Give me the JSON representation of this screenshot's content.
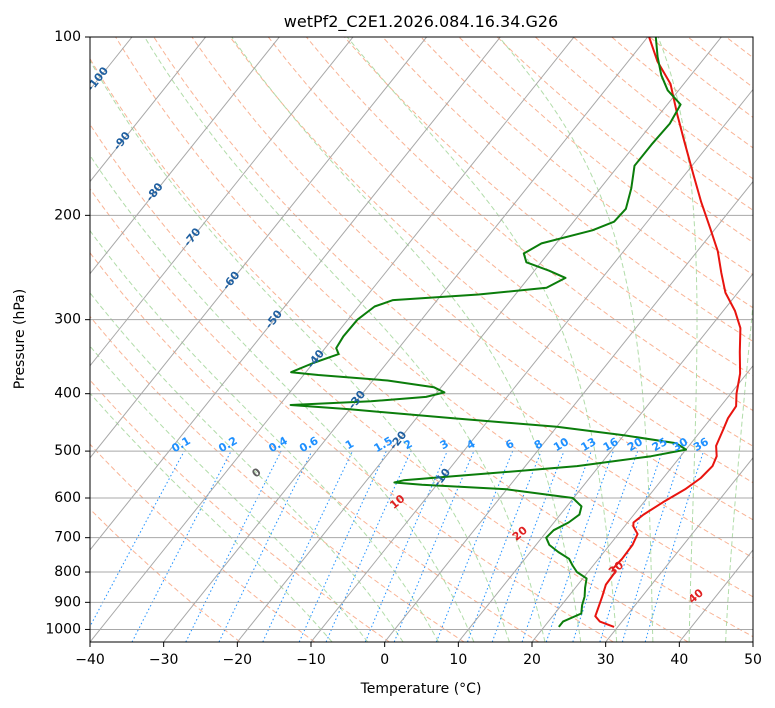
{
  "chart_data": {
    "type": "line",
    "title": "wetPf2_C2E1.2026.084.16.34.G26",
    "xlabel": "Temperature (°C)",
    "ylabel": "Pressure (hPa)",
    "xlim": [
      -40,
      50
    ],
    "ylim": [
      1050,
      100
    ],
    "y_scale": "log",
    "x_ticks": [
      -40,
      -30,
      -20,
      -10,
      0,
      10,
      20,
      30,
      40,
      50
    ],
    "y_ticks": [
      100,
      200,
      300,
      400,
      500,
      600,
      700,
      800,
      900,
      1000
    ],
    "grid": true,
    "background_lines": {
      "isotherms_skewed": true,
      "dry_adiabats": true,
      "moist_adiabats": true,
      "mixing_ratio_lines": true
    },
    "series": [
      {
        "key": "temperature",
        "color": "#e8140f",
        "points": [
          {
            "p": 990,
            "t": 29.5
          },
          {
            "p": 970,
            "t": 27.0
          },
          {
            "p": 950,
            "t": 25.8
          },
          {
            "p": 920,
            "t": 25.3
          },
          {
            "p": 880,
            "t": 24.6
          },
          {
            "p": 840,
            "t": 23.8
          },
          {
            "p": 800,
            "t": 23.7
          },
          {
            "p": 790,
            "t": 23.0
          },
          {
            "p": 760,
            "t": 23.2
          },
          {
            "p": 720,
            "t": 23.1
          },
          {
            "p": 690,
            "t": 22.6
          },
          {
            "p": 670,
            "t": 21.2
          },
          {
            "p": 660,
            "t": 20.8
          },
          {
            "p": 640,
            "t": 21.3
          },
          {
            "p": 610,
            "t": 22.6
          },
          {
            "p": 580,
            "t": 24.2
          },
          {
            "p": 555,
            "t": 25.1
          },
          {
            "p": 530,
            "t": 25.4
          },
          {
            "p": 510,
            "t": 24.9
          },
          {
            "p": 490,
            "t": 23.7
          },
          {
            "p": 460,
            "t": 22.9
          },
          {
            "p": 440,
            "t": 22.3
          },
          {
            "p": 420,
            "t": 22.1
          },
          {
            "p": 400,
            "t": 20.8
          },
          {
            "p": 370,
            "t": 19.1
          },
          {
            "p": 340,
            "t": 16.7
          },
          {
            "p": 310,
            "t": 14.2
          },
          {
            "p": 290,
            "t": 11.6
          },
          {
            "p": 270,
            "t": 8.3
          },
          {
            "p": 250,
            "t": 5.6
          },
          {
            "p": 230,
            "t": 2.8
          },
          {
            "p": 210,
            "t": -0.8
          },
          {
            "p": 190,
            "t": -4.8
          },
          {
            "p": 170,
            "t": -9.0
          },
          {
            "p": 150,
            "t": -13.7
          },
          {
            "p": 135,
            "t": -17.6
          },
          {
            "p": 120,
            "t": -21.8
          },
          {
            "p": 110,
            "t": -26.0
          },
          {
            "p": 100,
            "t": -29.8
          }
        ]
      },
      {
        "key": "dewpoint",
        "color": "#0b7d0b",
        "points": [
          {
            "p": 990,
            "t": 22.0
          },
          {
            "p": 970,
            "t": 22.0
          },
          {
            "p": 940,
            "t": 23.6
          },
          {
            "p": 910,
            "t": 22.8
          },
          {
            "p": 880,
            "t": 22.2
          },
          {
            "p": 850,
            "t": 21.3
          },
          {
            "p": 820,
            "t": 20.5
          },
          {
            "p": 800,
            "t": 18.5
          },
          {
            "p": 780,
            "t": 17.2
          },
          {
            "p": 760,
            "t": 16.0
          },
          {
            "p": 740,
            "t": 13.8
          },
          {
            "p": 720,
            "t": 11.8
          },
          {
            "p": 700,
            "t": 10.6
          },
          {
            "p": 680,
            "t": 10.8
          },
          {
            "p": 660,
            "t": 12.0
          },
          {
            "p": 640,
            "t": 12.6
          },
          {
            "p": 620,
            "t": 12.0
          },
          {
            "p": 600,
            "t": 9.9
          },
          {
            "p": 580,
            "t": 0.0
          },
          {
            "p": 570,
            "t": -12.0
          },
          {
            "p": 565,
            "t": -16.0
          },
          {
            "p": 560,
            "t": -15.0
          },
          {
            "p": 545,
            "t": -4.0
          },
          {
            "p": 530,
            "t": 7.0
          },
          {
            "p": 510,
            "t": 16.0
          },
          {
            "p": 497,
            "t": 20.0
          },
          {
            "p": 485,
            "t": 18.0
          },
          {
            "p": 470,
            "t": 10.0
          },
          {
            "p": 455,
            "t": 0.0
          },
          {
            "p": 440,
            "t": -15.0
          },
          {
            "p": 425,
            "t": -30.0
          },
          {
            "p": 418,
            "t": -38.5
          },
          {
            "p": 412,
            "t": -28.0
          },
          {
            "p": 405,
            "t": -21.0
          },
          {
            "p": 398,
            "t": -19.0
          },
          {
            "p": 390,
            "t": -21.0
          },
          {
            "p": 380,
            "t": -28.0
          },
          {
            "p": 372,
            "t": -38.0
          },
          {
            "p": 368,
            "t": -42.0
          },
          {
            "p": 355,
            "t": -40.0
          },
          {
            "p": 343,
            "t": -37.5
          },
          {
            "p": 335,
            "t": -38.5
          },
          {
            "p": 320,
            "t": -38.8
          },
          {
            "p": 300,
            "t": -38.7
          },
          {
            "p": 285,
            "t": -37.8
          },
          {
            "p": 278,
            "t": -36.0
          },
          {
            "p": 272,
            "t": -25.0
          },
          {
            "p": 265,
            "t": -16.5
          },
          {
            "p": 255,
            "t": -15.0
          },
          {
            "p": 248,
            "t": -18.0
          },
          {
            "p": 240,
            "t": -22.0
          },
          {
            "p": 232,
            "t": -23.3
          },
          {
            "p": 223,
            "t": -22.0
          },
          {
            "p": 212,
            "t": -16.5
          },
          {
            "p": 205,
            "t": -14.5
          },
          {
            "p": 195,
            "t": -14.3
          },
          {
            "p": 180,
            "t": -15.8
          },
          {
            "p": 165,
            "t": -17.8
          },
          {
            "p": 152,
            "t": -17.8
          },
          {
            "p": 140,
            "t": -17.6
          },
          {
            "p": 130,
            "t": -18.2
          },
          {
            "p": 123,
            "t": -21.5
          },
          {
            "p": 116,
            "t": -24.0
          },
          {
            "p": 108,
            "t": -26.5
          },
          {
            "p": 100,
            "t": -28.9
          }
        ]
      }
    ],
    "labels": {
      "isotherm_labels": [
        "-100",
        "-90",
        "-80",
        "-70",
        "-60",
        "-50",
        "-40",
        "-30",
        "-20",
        "-10"
      ],
      "mixing_ratio_labels": [
        "0.1",
        "0.2",
        "0.4",
        "0.6",
        "1",
        "1.5",
        "2",
        "3",
        "4",
        "6",
        "8",
        "10",
        "13",
        "16",
        "20",
        "25",
        "30",
        "36"
      ],
      "moist_adiabat_labels": [
        "0",
        "10",
        "20",
        "30",
        "40"
      ]
    },
    "colors": {
      "isotherm_label": "#1f5fa0",
      "mixing_ratio": "#1e90ff",
      "moist_label": "#e02020",
      "dry_adiabat": "#f7a07a",
      "moist_adiabat": "#a8d8a0",
      "grid": "#a8a8a8"
    }
  }
}
